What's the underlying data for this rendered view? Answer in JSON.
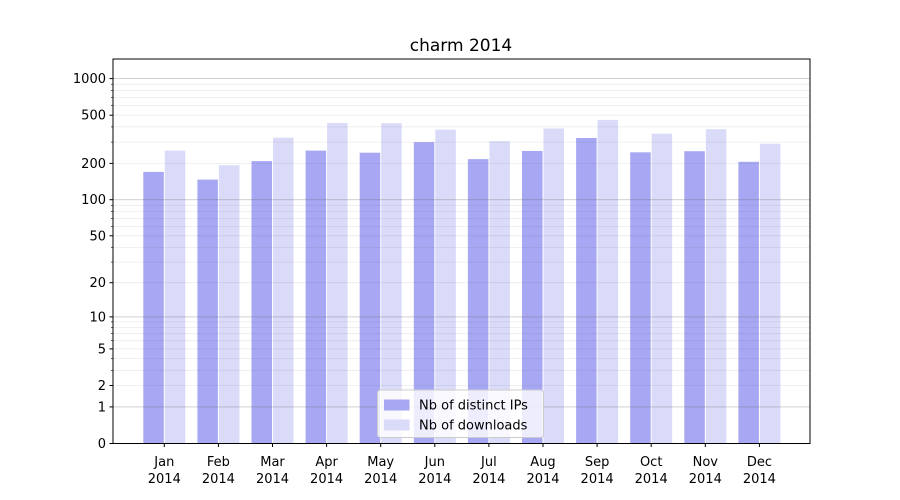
{
  "title": "charm 2014",
  "colors": {
    "distinct_ips": "#a7a7f3",
    "downloads": "#dadaf9",
    "axis": "#000000",
    "grid_major": "#c6c6c6",
    "grid_minor": "#e9e9e9",
    "legend_border": "#cccccc",
    "legend_background": "#ffffff",
    "text": "#000000"
  },
  "legend": {
    "position": "lower center",
    "items": [
      {
        "label": "Nb of distinct IPs",
        "color_key": "distinct_ips"
      },
      {
        "label": "Nb of downloads",
        "color_key": "downloads"
      }
    ]
  },
  "chart_data": {
    "type": "bar",
    "title": "charm 2014",
    "xlabel": "",
    "ylabel": "",
    "y_scale": "log1p (y position proportional to log10(1+value))",
    "grid": "horizontal, major lines at powers of 10, faint minor log lines",
    "ylim": [
      0,
      1450
    ],
    "y_ticks": [
      0,
      1,
      2,
      5,
      10,
      20,
      50,
      100,
      200,
      500,
      1000
    ],
    "y_tick_labels": [
      "0",
      "1",
      "2",
      "5",
      "10",
      "20",
      "50",
      "100",
      "200",
      "500",
      "1000"
    ],
    "x_tick_labels": [
      {
        "line1": "Jan",
        "line2": "2014"
      },
      {
        "line1": "Feb",
        "line2": "2014"
      },
      {
        "line1": "Mar",
        "line2": "2014"
      },
      {
        "line1": "Apr",
        "line2": "2014"
      },
      {
        "line1": "May",
        "line2": "2014"
      },
      {
        "line1": "Jun",
        "line2": "2014"
      },
      {
        "line1": "Jul",
        "line2": "2014"
      },
      {
        "line1": "Aug",
        "line2": "2014"
      },
      {
        "line1": "Sep",
        "line2": "2014"
      },
      {
        "line1": "Oct",
        "line2": "2014"
      },
      {
        "line1": "Nov",
        "line2": "2014"
      },
      {
        "line1": "Dec",
        "line2": "2014"
      }
    ],
    "series": [
      {
        "name": "Nb of distinct IPs",
        "color_key": "distinct_ips",
        "values": [
          170,
          147,
          209,
          255,
          245,
          300,
          217,
          253,
          324,
          247,
          252,
          206
        ]
      },
      {
        "name": "Nb of downloads",
        "color_key": "downloads",
        "values": [
          255,
          193,
          326,
          432,
          429,
          380,
          305,
          388,
          457,
          352,
          383,
          291
        ]
      }
    ]
  }
}
